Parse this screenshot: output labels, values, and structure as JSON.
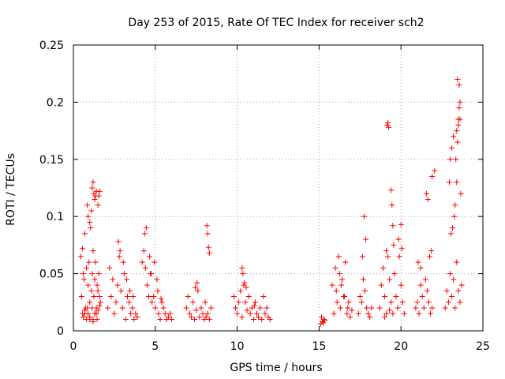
{
  "chart_data": {
    "type": "scatter",
    "title": "Day 253 of 2015, Rate Of TEC Index for receiver sch2",
    "xlabel": "GPS time / hours",
    "ylabel": "ROTI / TECUs",
    "xlim": [
      0,
      25
    ],
    "ylim": [
      0,
      0.25
    ],
    "grid": true,
    "marker": "+",
    "color": "#ff0000",
    "x_ticks": [
      {
        "value": 0,
        "label": "0"
      },
      {
        "value": 5,
        "label": "5"
      },
      {
        "value": 10,
        "label": "10"
      },
      {
        "value": 15,
        "label": "15"
      },
      {
        "value": 20,
        "label": "20"
      },
      {
        "value": 25,
        "label": "25"
      }
    ],
    "y_ticks": [
      {
        "value": 0,
        "label": "0"
      },
      {
        "value": 0.05,
        "label": "0.05"
      },
      {
        "value": 0.1,
        "label": "0.1"
      },
      {
        "value": 0.15,
        "label": "0.15"
      },
      {
        "value": 0.2,
        "label": "0.2"
      },
      {
        "value": 0.25,
        "label": "0.25"
      }
    ],
    "x": [
      0.45,
      0.5,
      0.55,
      0.6,
      0.65,
      0.7,
      0.75,
      0.8,
      0.85,
      0.9,
      0.95,
      1.0,
      1.05,
      1.1,
      1.15,
      1.2,
      1.25,
      1.3,
      1.35,
      1.4,
      1.45,
      1.5,
      1.55,
      1.6,
      1.65,
      1.15,
      1.2,
      1.25,
      1.3,
      1.35,
      1.4,
      0.9,
      1.0,
      1.1,
      1.5,
      1.55,
      1.6,
      0.7,
      0.8,
      1.0,
      1.2,
      1.4,
      0.55,
      0.7,
      0.85,
      1.0,
      1.15,
      1.3,
      1.45,
      1.6,
      0.6,
      0.9,
      1.2,
      1.5,
      2.1,
      2.2,
      2.3,
      2.4,
      2.5,
      2.6,
      2.7,
      2.8,
      2.9,
      3.0,
      3.1,
      3.2,
      3.3,
      3.4,
      3.5,
      3.6,
      3.7,
      3.8,
      3.9,
      2.75,
      2.85,
      3.05,
      3.25,
      3.45,
      3.65,
      4.2,
      4.3,
      4.4,
      4.5,
      4.6,
      4.7,
      4.8,
      4.9,
      5.0,
      5.1,
      5.2,
      5.3,
      5.4,
      5.5,
      5.6,
      5.7,
      5.8,
      5.9,
      6.0,
      4.35,
      4.45,
      4.65,
      4.75,
      4.95,
      5.15,
      5.35,
      6.9,
      7.0,
      7.1,
      7.2,
      7.3,
      7.4,
      7.5,
      7.6,
      7.7,
      7.8,
      7.9,
      8.0,
      8.1,
      8.2,
      8.3,
      8.4,
      8.15,
      8.2,
      8.25,
      8.3,
      7.45,
      7.55,
      8.05,
      9.8,
      9.9,
      10.0,
      10.1,
      10.2,
      10.3,
      10.4,
      10.5,
      10.6,
      10.7,
      10.8,
      10.9,
      11.0,
      11.1,
      11.2,
      11.3,
      11.4,
      11.5,
      11.6,
      11.7,
      11.8,
      11.9,
      12.0,
      10.3,
      10.35,
      10.45,
      10.55,
      11.05,
      15.1,
      15.2,
      15.3,
      15.15,
      15.25,
      15.35,
      15.8,
      15.9,
      16.0,
      16.1,
      16.2,
      16.3,
      16.4,
      16.5,
      16.6,
      16.7,
      16.8,
      16.9,
      17.0,
      16.05,
      16.25,
      16.35,
      16.55,
      16.75,
      17.4,
      17.5,
      17.6,
      17.7,
      17.8,
      17.9,
      18.0,
      18.1,
      18.2,
      17.65,
      17.75,
      17.85,
      18.7,
      18.8,
      18.9,
      19.0,
      19.1,
      19.2,
      19.3,
      19.4,
      19.5,
      19.6,
      19.7,
      19.8,
      19.9,
      20.0,
      20.1,
      20.2,
      19.15,
      19.2,
      19.25,
      19.4,
      19.45,
      19.5,
      19.55,
      19.85,
      20.0,
      20.05,
      19.0,
      19.1,
      19.3,
      20.9,
      21.0,
      21.1,
      21.2,
      21.3,
      21.4,
      21.5,
      21.6,
      21.7,
      21.8,
      21.9,
      21.55,
      21.65,
      21.75,
      21.85,
      21.9,
      22.05,
      21.05,
      21.2,
      22.7,
      22.8,
      22.9,
      23.0,
      23.1,
      23.2,
      23.3,
      23.4,
      23.5,
      23.6,
      23.7,
      23.35,
      23.4,
      23.45,
      23.5,
      23.55,
      23.6,
      23.45,
      23.55,
      23.3,
      23.25,
      23.15,
      23.05,
      22.95,
      23.0,
      23.1,
      23.2,
      23.4,
      23.5,
      23.6,
      23.65
    ],
    "y": [
      0.065,
      0.03,
      0.072,
      0.05,
      0.045,
      0.085,
      0.02,
      0.055,
      0.11,
      0.04,
      0.06,
      0.025,
      0.09,
      0.035,
      0.05,
      0.07,
      0.03,
      0.045,
      0.06,
      0.02,
      0.04,
      0.035,
      0.05,
      0.03,
      0.025,
      0.125,
      0.13,
      0.12,
      0.115,
      0.118,
      0.122,
      0.1,
      0.095,
      0.105,
      0.11,
      0.118,
      0.122,
      0.015,
      0.01,
      0.012,
      0.008,
      0.015,
      0.015,
      0.018,
      0.02,
      0.01,
      0.02,
      0.015,
      0.01,
      0.022,
      0.012,
      0.015,
      0.01,
      0.018,
      0.02,
      0.055,
      0.03,
      0.045,
      0.015,
      0.025,
      0.04,
      0.065,
      0.035,
      0.02,
      0.05,
      0.01,
      0.03,
      0.025,
      0.015,
      0.02,
      0.01,
      0.015,
      0.012,
      0.078,
      0.07,
      0.06,
      0.045,
      0.035,
      0.03,
      0.06,
      0.07,
      0.055,
      0.04,
      0.03,
      0.05,
      0.025,
      0.03,
      0.02,
      0.045,
      0.015,
      0.01,
      0.025,
      0.02,
      0.015,
      0.01,
      0.012,
      0.015,
      0.01,
      0.085,
      0.09,
      0.065,
      0.05,
      0.06,
      0.035,
      0.028,
      0.02,
      0.03,
      0.015,
      0.012,
      0.025,
      0.01,
      0.018,
      0.035,
      0.012,
      0.02,
      0.015,
      0.01,
      0.012,
      0.015,
      0.01,
      0.02,
      0.092,
      0.085,
      0.073,
      0.068,
      0.038,
      0.042,
      0.025,
      0.03,
      0.02,
      0.015,
      0.025,
      0.035,
      0.012,
      0.04,
      0.025,
      0.018,
      0.03,
      0.015,
      0.02,
      0.01,
      0.025,
      0.015,
      0.012,
      0.02,
      0.01,
      0.03,
      0.015,
      0.02,
      0.012,
      0.01,
      0.055,
      0.05,
      0.042,
      0.038,
      0.022,
      0.006,
      0.008,
      0.01,
      0.012,
      0.007,
      0.009,
      0.04,
      0.015,
      0.055,
      0.025,
      0.065,
      0.02,
      0.045,
      0.03,
      0.06,
      0.015,
      0.025,
      0.012,
      0.018,
      0.035,
      0.05,
      0.04,
      0.03,
      0.02,
      0.015,
      0.03,
      0.025,
      0.045,
      0.035,
      0.02,
      0.015,
      0.012,
      0.02,
      0.065,
      0.1,
      0.08,
      0.02,
      0.04,
      0.055,
      0.03,
      0.07,
      0.065,
      0.045,
      0.025,
      0.015,
      0.05,
      0.03,
      0.02,
      0.065,
      0.04,
      0.025,
      0.015,
      0.18,
      0.182,
      0.178,
      0.123,
      0.11,
      0.092,
      0.075,
      0.08,
      0.093,
      0.072,
      0.012,
      0.015,
      0.018,
      0.02,
      0.025,
      0.015,
      0.04,
      0.03,
      0.02,
      0.045,
      0.035,
      0.025,
      0.015,
      0.02,
      0.12,
      0.115,
      0.065,
      0.07,
      0.135,
      0.14,
      0.06,
      0.055,
      0.02,
      0.035,
      0.025,
      0.05,
      0.03,
      0.045,
      0.02,
      0.06,
      0.035,
      0.025,
      0.04,
      0.15,
      0.13,
      0.165,
      0.18,
      0.195,
      0.2,
      0.22,
      0.215,
      0.11,
      0.1,
      0.09,
      0.085,
      0.13,
      0.15,
      0.16,
      0.17,
      0.175,
      0.185,
      0.185,
      0.12
    ]
  }
}
